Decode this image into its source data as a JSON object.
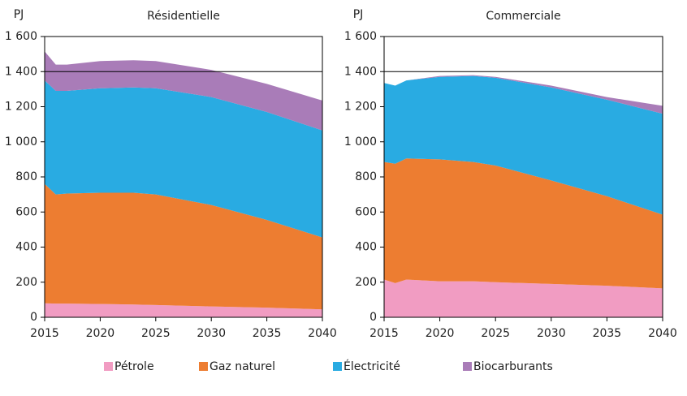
{
  "chart_data": [
    {
      "type": "area",
      "title": "Résidentielle",
      "y_label": "PJ",
      "x": [
        2015,
        2016,
        2017,
        2020,
        2023,
        2025,
        2030,
        2035,
        2040
      ],
      "xlim": [
        2015,
        2040
      ],
      "xticks": [
        2015,
        2020,
        2025,
        2030,
        2035,
        2040
      ],
      "ylim": [
        0,
        1600
      ],
      "yticks": [
        0,
        200,
        400,
        600,
        800,
        {
          "value": 1000,
          "label": "1 000"
        },
        {
          "value": 1200,
          "label": "1 200"
        },
        {
          "value": 1400,
          "label": "1 400"
        },
        {
          "value": 1600,
          "label": "1 600"
        }
      ],
      "reference_line": 1400,
      "stacked": true,
      "series": [
        {
          "name": "Pétrole",
          "color": "#f19cc2",
          "values": [
            80,
            78,
            78,
            76,
            73,
            70,
            62,
            55,
            45
          ]
        },
        {
          "name": "Gaz naturel",
          "color": "#ed7d31",
          "values": [
            680,
            622,
            627,
            634,
            637,
            630,
            578,
            500,
            410
          ]
        },
        {
          "name": "Électricité",
          "color": "#29abe2",
          "values": [
            590,
            590,
            585,
            595,
            600,
            605,
            615,
            615,
            610
          ]
        },
        {
          "name": "Biocarburants",
          "color": "#a97cb8",
          "values": [
            165,
            150,
            150,
            155,
            155,
            155,
            155,
            160,
            170
          ]
        }
      ]
    },
    {
      "type": "area",
      "title": "Commerciale",
      "y_label": "PJ",
      "x": [
        2015,
        2016,
        2017,
        2020,
        2023,
        2025,
        2030,
        2035,
        2040
      ],
      "xlim": [
        2015,
        2040
      ],
      "xticks": [
        2015,
        2020,
        2025,
        2030,
        2035,
        2040
      ],
      "ylim": [
        0,
        1600
      ],
      "yticks": [
        0,
        200,
        400,
        600,
        800,
        {
          "value": 1000,
          "label": "1 000"
        },
        {
          "value": 1200,
          "label": "1 200"
        },
        {
          "value": 1400,
          "label": "1 400"
        },
        {
          "value": 1600,
          "label": "1 600"
        }
      ],
      "reference_line": 1400,
      "stacked": true,
      "series": [
        {
          "name": "Pétrole",
          "color": "#f19cc2",
          "values": [
            215,
            195,
            215,
            205,
            205,
            200,
            190,
            180,
            165
          ]
        },
        {
          "name": "Gaz naturel",
          "color": "#ed7d31",
          "values": [
            670,
            680,
            690,
            695,
            680,
            665,
            590,
            510,
            420
          ]
        },
        {
          "name": "Électricité",
          "color": "#29abe2",
          "values": [
            450,
            445,
            445,
            470,
            490,
            500,
            530,
            550,
            575
          ]
        },
        {
          "name": "Biocarburants",
          "color": "#a97cb8",
          "values": [
            0,
            0,
            0,
            5,
            5,
            5,
            10,
            15,
            45
          ]
        }
      ]
    }
  ]
}
